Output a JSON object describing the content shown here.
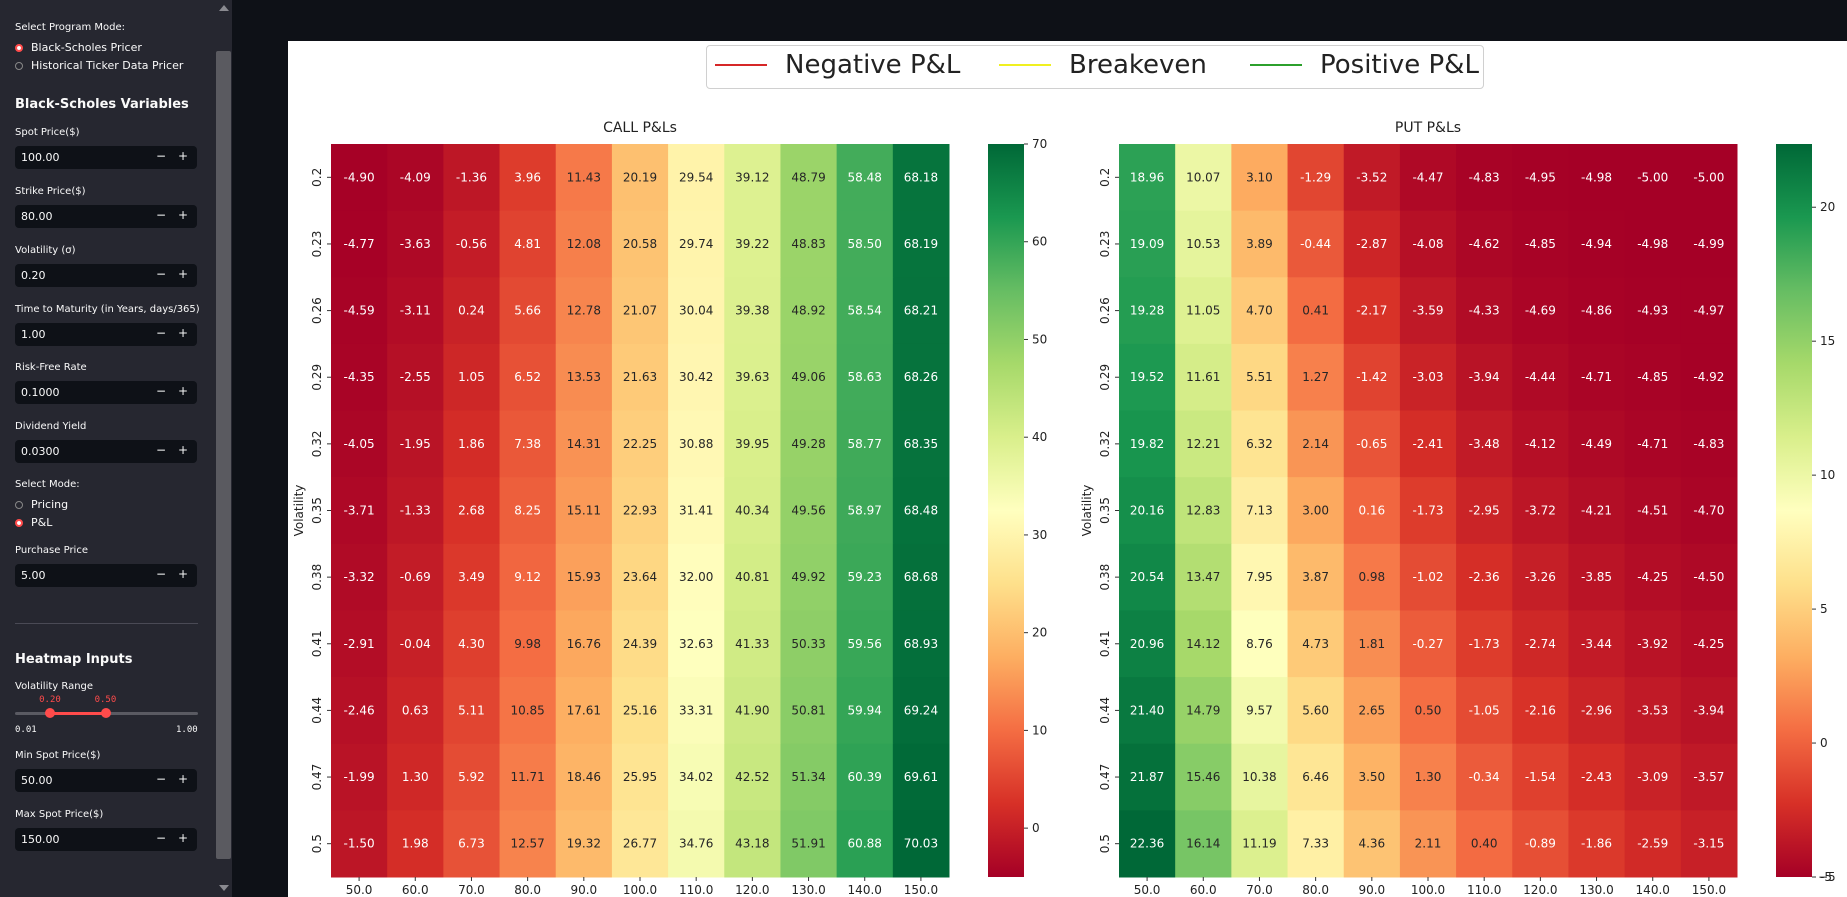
{
  "sidebar": {
    "program_mode_label": "Select Program Mode:",
    "program_modes": [
      {
        "label": "Black-Scholes Pricer",
        "selected": true
      },
      {
        "label": "Historical Ticker Data Pricer",
        "selected": false
      }
    ],
    "section_title": "Black-Scholes Variables",
    "inputs": [
      {
        "label": "Spot Price($)",
        "value": "100.00"
      },
      {
        "label": "Strike Price($)",
        "value": "80.00"
      },
      {
        "label": "Volatility (σ)",
        "value": "0.20"
      },
      {
        "label": "Time to Maturity (in Years, days/365)",
        "value": "1.00"
      },
      {
        "label": "Risk-Free Rate",
        "value": "0.1000"
      },
      {
        "label": "Dividend Yield",
        "value": "0.0300"
      }
    ],
    "mode_label": "Select Mode:",
    "modes": [
      {
        "label": "Pricing",
        "selected": false
      },
      {
        "label": "P&L",
        "selected": true
      }
    ],
    "purchase_label": "Purchase Price",
    "purchase_value": "5.00",
    "heatmap_title": "Heatmap Inputs",
    "vol_range_label": "Volatility Range",
    "vol_range": {
      "low": "0.20",
      "high": "0.50",
      "min": "0.01",
      "max": "1.00",
      "low_frac": 0.192,
      "high_frac": 0.495
    },
    "min_spot_label": "Min Spot Price($)",
    "min_spot_value": "50.00",
    "max_spot_label": "Max Spot Price($)",
    "max_spot_value": "150.00",
    "minus_glyph": "−",
    "plus_glyph": "+"
  },
  "legend": [
    {
      "label": "Negative P&L",
      "color": "#d62728"
    },
    {
      "label": "Breakeven",
      "color": "#f0f020"
    },
    {
      "label": "Positive P&L",
      "color": "#2ca02c"
    }
  ],
  "chart_data": [
    {
      "type": "heatmap",
      "title": "CALL P&Ls",
      "ylabel": "Volatility",
      "xlabel": "",
      "x_ticks": [
        "50.0",
        "60.0",
        "70.0",
        "80.0",
        "90.0",
        "100.0",
        "110.0",
        "120.0",
        "130.0",
        "140.0",
        "150.0"
      ],
      "y_ticks": [
        "0.2",
        "0.23",
        "0.26",
        "0.29",
        "0.32",
        "0.35",
        "0.38",
        "0.41",
        "0.44",
        "0.47",
        "0.5"
      ],
      "values": [
        [
          -4.9,
          -4.09,
          -1.36,
          3.96,
          11.43,
          20.19,
          29.54,
          39.12,
          48.79,
          58.48,
          68.18
        ],
        [
          -4.77,
          -3.63,
          -0.56,
          4.81,
          12.08,
          20.58,
          29.74,
          39.22,
          48.83,
          58.5,
          68.19
        ],
        [
          -4.59,
          -3.11,
          0.24,
          5.66,
          12.78,
          21.07,
          30.04,
          39.38,
          48.92,
          58.54,
          68.21
        ],
        [
          -4.35,
          -2.55,
          1.05,
          6.52,
          13.53,
          21.63,
          30.42,
          39.63,
          49.06,
          58.63,
          68.26
        ],
        [
          -4.05,
          -1.95,
          1.86,
          7.38,
          14.31,
          22.25,
          30.88,
          39.95,
          49.28,
          58.77,
          68.35
        ],
        [
          -3.71,
          -1.33,
          2.68,
          8.25,
          15.11,
          22.93,
          31.41,
          40.34,
          49.56,
          58.97,
          68.48
        ],
        [
          -3.32,
          -0.69,
          3.49,
          9.12,
          15.93,
          23.64,
          32.0,
          40.81,
          49.92,
          59.23,
          68.68
        ],
        [
          -2.91,
          -0.04,
          4.3,
          9.98,
          16.76,
          24.39,
          32.63,
          41.33,
          50.33,
          59.56,
          68.93
        ],
        [
          -2.46,
          0.63,
          5.11,
          10.85,
          17.61,
          25.16,
          33.31,
          41.9,
          50.81,
          59.94,
          69.24
        ],
        [
          -1.99,
          1.3,
          5.92,
          11.71,
          18.46,
          25.95,
          34.02,
          42.52,
          51.34,
          60.39,
          69.61
        ],
        [
          -1.5,
          1.98,
          6.73,
          12.57,
          19.32,
          26.77,
          34.76,
          43.18,
          51.91,
          60.88,
          70.03
        ]
      ],
      "labels": [
        [
          "-4.90",
          "-4.09",
          "-1.36",
          "3.96",
          "11.43",
          "20.19",
          "29.54",
          "39.12",
          "48.79",
          "58.48",
          "68.18"
        ],
        [
          "-4.77",
          "-3.63",
          "-0.56",
          "4.81",
          "12.08",
          "20.58",
          "29.74",
          "39.22",
          "48.83",
          "58.50",
          "68.19"
        ],
        [
          "-4.59",
          "-3.11",
          "0.24",
          "5.66",
          "12.78",
          "21.07",
          "30.04",
          "39.38",
          "48.92",
          "58.54",
          "68.21"
        ],
        [
          "-4.35",
          "-2.55",
          "1.05",
          "6.52",
          "13.53",
          "21.63",
          "30.42",
          "39.63",
          "49.06",
          "58.63",
          "68.26"
        ],
        [
          "-4.05",
          "-1.95",
          "1.86",
          "7.38",
          "14.31",
          "22.25",
          "30.88",
          "39.95",
          "49.28",
          "58.77",
          "68.35"
        ],
        [
          "-3.71",
          "-1.33",
          "2.68",
          "8.25",
          "15.11",
          "22.93",
          "31.41",
          "40.34",
          "49.56",
          "58.97",
          "68.48"
        ],
        [
          "-3.32",
          "-0.69",
          "3.49",
          "9.12",
          "15.93",
          "23.64",
          "32.00",
          "40.81",
          "49.92",
          "59.23",
          "68.68"
        ],
        [
          "-2.91",
          "-0.04",
          "4.30",
          "9.98",
          "16.76",
          "24.39",
          "32.63",
          "41.33",
          "50.33",
          "59.56",
          "68.93"
        ],
        [
          "-2.46",
          "0.63",
          "5.11",
          "10.85",
          "17.61",
          "25.16",
          "33.31",
          "41.90",
          "50.81",
          "59.94",
          "69.24"
        ],
        [
          "-1.99",
          "1.30",
          "5.92",
          "11.71",
          "18.46",
          "25.95",
          "34.02",
          "42.52",
          "51.34",
          "60.39",
          "69.61"
        ],
        [
          "-1.50",
          "1.98",
          "6.73",
          "12.57",
          "19.32",
          "26.77",
          "34.76",
          "43.18",
          "51.91",
          "60.88",
          "70.03"
        ]
      ],
      "colorbar": {
        "min": -5,
        "max": 70,
        "ticks": [
          0,
          10,
          20,
          30,
          40,
          50,
          60,
          70
        ]
      },
      "colormap": "RdYlGn"
    },
    {
      "type": "heatmap",
      "title": "PUT P&Ls",
      "ylabel": "Volatility",
      "xlabel": "",
      "x_ticks": [
        "50.0",
        "60.0",
        "70.0",
        "80.0",
        "90.0",
        "100.0",
        "110.0",
        "120.0",
        "130.0",
        "140.0",
        "150.0"
      ],
      "y_ticks": [
        "0.2",
        "0.23",
        "0.26",
        "0.29",
        "0.32",
        "0.35",
        "0.38",
        "0.41",
        "0.44",
        "0.47",
        "0.5"
      ],
      "values": [
        [
          18.96,
          10.07,
          3.1,
          -1.29,
          -3.52,
          -4.47,
          -4.83,
          -4.95,
          -4.98,
          -5.0,
          -5.0
        ],
        [
          19.09,
          10.53,
          3.89,
          -0.44,
          -2.87,
          -4.08,
          -4.62,
          -4.85,
          -4.94,
          -4.98,
          -4.99
        ],
        [
          19.28,
          11.05,
          4.7,
          0.41,
          -2.17,
          -3.59,
          -4.33,
          -4.69,
          -4.86,
          -4.93,
          -4.97
        ],
        [
          19.52,
          11.61,
          5.51,
          1.27,
          -1.42,
          -3.03,
          -3.94,
          -4.44,
          -4.71,
          -4.85,
          -4.92
        ],
        [
          19.82,
          12.21,
          6.32,
          2.14,
          -0.65,
          -2.41,
          -3.48,
          -4.12,
          -4.49,
          -4.71,
          -4.83
        ],
        [
          20.16,
          12.83,
          7.13,
          3.0,
          0.16,
          -1.73,
          -2.95,
          -3.72,
          -4.21,
          -4.51,
          -4.7
        ],
        [
          20.54,
          13.47,
          7.95,
          3.87,
          0.98,
          -1.02,
          -2.36,
          -3.26,
          -3.85,
          -4.25,
          -4.5
        ],
        [
          20.96,
          14.12,
          8.76,
          4.73,
          1.81,
          -0.27,
          -1.73,
          -2.74,
          -3.44,
          -3.92,
          -4.25
        ],
        [
          21.4,
          14.79,
          9.57,
          5.6,
          2.65,
          0.5,
          -1.05,
          -2.16,
          -2.96,
          -3.53,
          -3.94
        ],
        [
          21.87,
          15.46,
          10.38,
          6.46,
          3.5,
          1.3,
          -0.34,
          -1.54,
          -2.43,
          -3.09,
          -3.57
        ],
        [
          22.36,
          16.14,
          11.19,
          7.33,
          4.36,
          2.11,
          0.4,
          -0.89,
          -1.86,
          -2.59,
          -3.15
        ]
      ],
      "labels": [
        [
          "18.96",
          "10.07",
          "3.10",
          "-1.29",
          "-3.52",
          "-4.47",
          "-4.83",
          "-4.95",
          "-4.98",
          "-5.00",
          "-5.00"
        ],
        [
          "19.09",
          "10.53",
          "3.89",
          "-0.44",
          "-2.87",
          "-4.08",
          "-4.62",
          "-4.85",
          "-4.94",
          "-4.98",
          "-4.99"
        ],
        [
          "19.28",
          "11.05",
          "4.70",
          "0.41",
          "-2.17",
          "-3.59",
          "-4.33",
          "-4.69",
          "-4.86",
          "-4.93",
          "-4.97"
        ],
        [
          "19.52",
          "11.61",
          "5.51",
          "1.27",
          "-1.42",
          "-3.03",
          "-3.94",
          "-4.44",
          "-4.71",
          "-4.85",
          "-4.92"
        ],
        [
          "19.82",
          "12.21",
          "6.32",
          "2.14",
          "-0.65",
          "-2.41",
          "-3.48",
          "-4.12",
          "-4.49",
          "-4.71",
          "-4.83"
        ],
        [
          "20.16",
          "12.83",
          "7.13",
          "3.00",
          "0.16",
          "-1.73",
          "-2.95",
          "-3.72",
          "-4.21",
          "-4.51",
          "-4.70"
        ],
        [
          "20.54",
          "13.47",
          "7.95",
          "3.87",
          "0.98",
          "-1.02",
          "-2.36",
          "-3.26",
          "-3.85",
          "-4.25",
          "-4.50"
        ],
        [
          "20.96",
          "14.12",
          "8.76",
          "4.73",
          "1.81",
          "-0.27",
          "-1.73",
          "-2.74",
          "-3.44",
          "-3.92",
          "-4.25"
        ],
        [
          "21.40",
          "14.79",
          "9.57",
          "5.60",
          "2.65",
          "0.50",
          "-1.05",
          "-2.16",
          "-2.96",
          "-3.53",
          "-3.94"
        ],
        [
          "21.87",
          "15.46",
          "10.38",
          "6.46",
          "3.50",
          "1.30",
          "-0.34",
          "-1.54",
          "-2.43",
          "-3.09",
          "-3.57"
        ],
        [
          "22.36",
          "16.14",
          "11.19",
          "7.33",
          "4.36",
          "2.11",
          "0.40",
          "-0.89",
          "-1.86",
          "-2.59",
          "-3.15"
        ]
      ],
      "colorbar": {
        "min": -5,
        "max": 22.36,
        "ticks": [
          -5,
          0,
          5,
          10,
          15,
          20
        ]
      },
      "colormap": "RdYlGn"
    }
  ]
}
